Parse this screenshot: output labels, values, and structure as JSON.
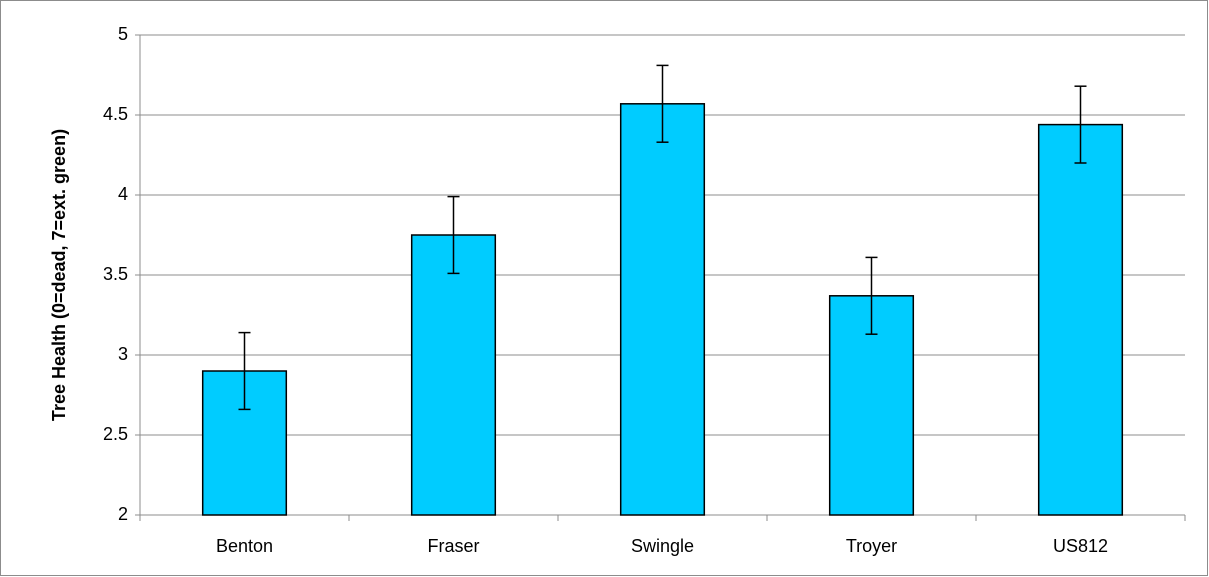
{
  "chart_data": {
    "type": "bar",
    "y_label": "Tree Health (0=dead, 7=ext. green)",
    "categories": [
      "Benton",
      "Fraser",
      "Swingle",
      "Troyer",
      "US812"
    ],
    "values": [
      2.9,
      3.75,
      4.57,
      3.37,
      4.44
    ],
    "errors": [
      0.24,
      0.24,
      0.24,
      0.24,
      0.24
    ],
    "color": "#00ccff",
    "ylim": [
      2,
      5
    ],
    "yticks": [
      2,
      2.5,
      3,
      3.5,
      4,
      4.5,
      5
    ],
    "grid": true
  }
}
